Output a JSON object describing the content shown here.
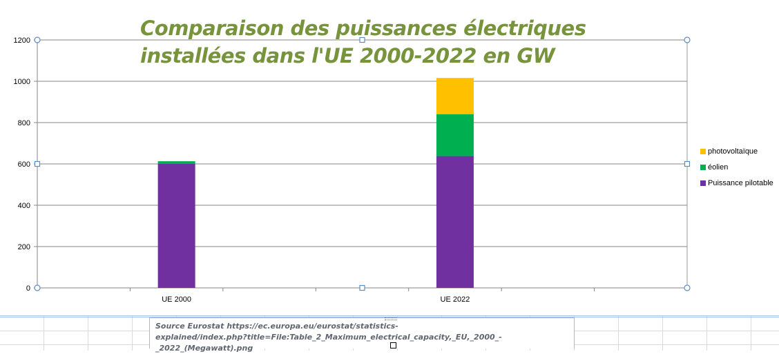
{
  "chart_data": {
    "type": "bar",
    "stacked": true,
    "title_lines": [
      "Comparaison des puissances électriques",
      "installées dans l'UE 2000-2022 en GW"
    ],
    "categories": [
      "UE 2000",
      "UE 2022"
    ],
    "series": [
      {
        "name": "Puissance pilotable",
        "color": "#7030a0",
        "values": [
          600,
          638
        ]
      },
      {
        "name": "éolien",
        "color": "#00b050",
        "values": [
          13,
          203
        ]
      },
      {
        "name": "photovoltaïque",
        "color": "#ffc000",
        "values": [
          0,
          175
        ]
      }
    ],
    "yticks": [
      "0",
      "200",
      "400",
      "600",
      "800",
      "1000",
      "1200"
    ],
    "ylim": [
      0,
      1200
    ],
    "grid": true,
    "legend_position": "right",
    "legend_order": [
      "photovoltaïque",
      "éolien",
      "Puissance pilotable"
    ]
  },
  "source_note": {
    "line1": "Source Eurostat  https://ec.europa.eu/eurostat/statistics-",
    "line2": "explained/index.php?title=File:Table_2_Maximum_electrical_capacity,_EU,_2000_-_2022_(Megawatt).png"
  }
}
